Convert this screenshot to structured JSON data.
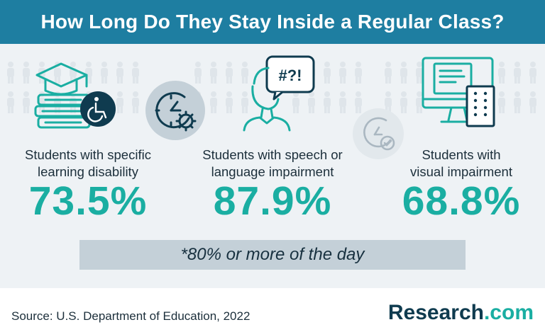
{
  "title": "How Long Do They Stay Inside a Regular Class?",
  "stats": [
    {
      "label_line1": "Students with specific",
      "label_line2": "learning disability",
      "value": "73.5%"
    },
    {
      "label_line1": "Students with speech or",
      "label_line2": "language impairment",
      "value": "87.9%"
    },
    {
      "label_line1": "Students with",
      "label_line2": "visual impairment",
      "value": "68.8%"
    }
  ],
  "note": "*80% or more of the day",
  "source": "Source: U.S. Department of Education, 2022",
  "brand": {
    "name": "Research",
    "suffix": ".com"
  },
  "speech_bubble": "#?!",
  "colors": {
    "header": "#1e7ea1",
    "accent": "#1aaea2",
    "dark": "#0f3b4f",
    "note_bg": "#c4d0d8"
  },
  "icons": [
    "books-graduation-cap-icon",
    "wheelchair-icon",
    "clock-gear-icon",
    "person-speech-bubble-icon",
    "clock-check-icon",
    "computer-monitor-icon",
    "braille-card-icon"
  ]
}
